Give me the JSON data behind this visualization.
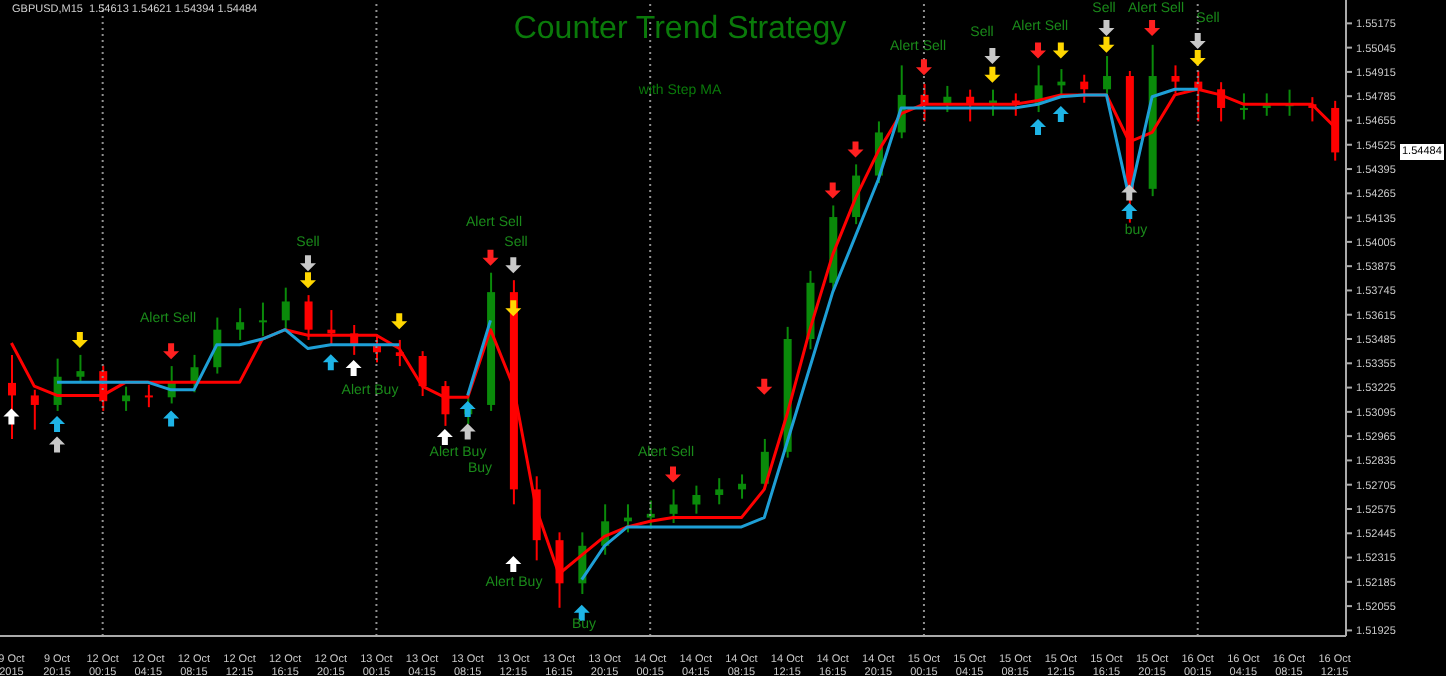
{
  "chart_data": {
    "type": "candlestick",
    "title": "Counter Trend Strategy",
    "subtitle": "with Step MA",
    "categories": [
      "9 Oct 2015",
      null,
      "9 Oct 20:15",
      null,
      "12 Oct 00:15",
      null,
      "12 Oct 04:15",
      null,
      "12 Oct 08:15",
      null,
      "12 Oct 12:15",
      null,
      "12 Oct 16:15",
      null,
      "12 Oct 20:15",
      null,
      "13 Oct 00:15",
      null,
      "13 Oct 04:15",
      null,
      "13 Oct 08:15",
      null,
      "13 Oct 12:15",
      null,
      "13 Oct 16:15",
      null,
      "13 Oct 20:15",
      null,
      "14 Oct 00:15",
      null,
      "14 Oct 04:15",
      null,
      "14 Oct 08:15",
      null,
      "14 Oct 12:15",
      null,
      "14 Oct 16:15",
      null,
      "14 Oct 20:15",
      null,
      "15 Oct 00:15",
      null,
      "15 Oct 04:15",
      null,
      "15 Oct 08:15",
      null,
      "15 Oct 12:15",
      null,
      "15 Oct 16:15",
      null,
      "15 Oct 20:15",
      null,
      "16 Oct 00:15",
      null,
      "16 Oct 04:15",
      null,
      "16 Oct 08:15",
      null,
      "16 Oct 12:15"
    ],
    "ohlc": [
      [
        1.5325,
        1.534,
        1.5295,
        1.53183
      ],
      [
        1.53183,
        1.53213,
        1.53,
        1.53132
      ],
      [
        1.53132,
        1.5338,
        1.531,
        1.53283
      ],
      [
        1.53283,
        1.534,
        1.5325,
        1.53313
      ],
      [
        1.53313,
        1.53343,
        1.531,
        1.53152
      ],
      [
        1.53152,
        1.5323,
        1.531,
        1.53183
      ],
      [
        1.53183,
        1.5324,
        1.5312,
        1.53173
      ],
      [
        1.53173,
        1.5334,
        1.5314,
        1.53253
      ],
      [
        1.53253,
        1.534,
        1.532,
        1.53334
      ],
      [
        1.53334,
        1.536,
        1.533,
        1.53535
      ],
      [
        1.53535,
        1.5365,
        1.5348,
        1.53575
      ],
      [
        1.53575,
        1.5368,
        1.535,
        1.53585
      ],
      [
        1.53585,
        1.5376,
        1.5354,
        1.53686
      ],
      [
        1.53686,
        1.5372,
        1.5348,
        1.53535
      ],
      [
        1.53535,
        1.5364,
        1.5345,
        1.53515
      ],
      [
        1.53515,
        1.5356,
        1.534,
        1.53454
      ],
      [
        1.53454,
        1.535,
        1.5336,
        1.53414
      ],
      [
        1.53414,
        1.5348,
        1.5334,
        1.53394
      ],
      [
        1.53394,
        1.5342,
        1.5318,
        1.53233
      ],
      [
        1.53233,
        1.5326,
        1.5302,
        1.53082
      ],
      [
        1.53082,
        1.532,
        1.5303,
        1.53132
      ],
      [
        1.53132,
        1.5384,
        1.531,
        1.53736
      ],
      [
        1.53736,
        1.538,
        1.526,
        1.5268
      ],
      [
        1.5268,
        1.5275,
        1.523,
        1.52408
      ],
      [
        1.52408,
        1.5245,
        1.52046,
        1.52177
      ],
      [
        1.52177,
        1.5245,
        1.5212,
        1.52378
      ],
      [
        1.52378,
        1.526,
        1.5233,
        1.52509
      ],
      [
        1.52509,
        1.526,
        1.5245,
        1.52529
      ],
      [
        1.52529,
        1.5262,
        1.5247,
        1.52549
      ],
      [
        1.52549,
        1.5268,
        1.525,
        1.52599
      ],
      [
        1.52599,
        1.527,
        1.5255,
        1.5265
      ],
      [
        1.5265,
        1.5274,
        1.526,
        1.5268
      ],
      [
        1.5268,
        1.5276,
        1.5263,
        1.5271
      ],
      [
        1.5271,
        1.5295,
        1.5268,
        1.52881
      ],
      [
        1.52881,
        1.5355,
        1.5285,
        1.53485
      ],
      [
        1.53485,
        1.5385,
        1.5343,
        1.53786
      ],
      [
        1.53786,
        1.542,
        1.5375,
        1.54138
      ],
      [
        1.54138,
        1.5442,
        1.541,
        1.5436
      ],
      [
        1.5436,
        1.5465,
        1.5432,
        1.54591
      ],
      [
        1.54591,
        1.5495,
        1.5456,
        1.54792
      ],
      [
        1.54792,
        1.5485,
        1.5465,
        1.54742
      ],
      [
        1.54742,
        1.5484,
        1.547,
        1.54782
      ],
      [
        1.54782,
        1.5482,
        1.5465,
        1.54742
      ],
      [
        1.54742,
        1.5482,
        1.5468,
        1.54762
      ],
      [
        1.54762,
        1.548,
        1.5468,
        1.54742
      ],
      [
        1.54742,
        1.5495,
        1.547,
        1.54843
      ],
      [
        1.54843,
        1.5493,
        1.5478,
        1.54863
      ],
      [
        1.54863,
        1.549,
        1.5475,
        1.54822
      ],
      [
        1.54822,
        1.55,
        1.5478,
        1.54893
      ],
      [
        1.54893,
        1.5492,
        1.54108,
        1.54289
      ],
      [
        1.54289,
        1.5506,
        1.5425,
        1.54893
      ],
      [
        1.54893,
        1.5495,
        1.548,
        1.54863
      ],
      [
        1.54863,
        1.5492,
        1.5465,
        1.54822
      ],
      [
        1.54822,
        1.5486,
        1.5465,
        1.54722
      ],
      [
        1.54722,
        1.548,
        1.5466,
        1.54722
      ],
      [
        1.54722,
        1.548,
        1.5468,
        1.54742
      ],
      [
        1.54742,
        1.5482,
        1.5468,
        1.54742
      ],
      [
        1.54742,
        1.5478,
        1.5465,
        1.54722
      ],
      [
        1.54722,
        1.5476,
        1.5444,
        1.54484
      ]
    ],
    "colors": [
      "#ff0000",
      "#ff0000",
      "#0a8a0a",
      "#0a8a0a",
      "#ff0000",
      "#0a8a0a",
      "#ff0000",
      "#0a8a0a",
      "#0a8a0a",
      "#0a8a0a",
      "#0a8a0a",
      "#0a8a0a",
      "#0a8a0a",
      "#ff0000",
      "#ff0000",
      "#ff0000",
      "#ff0000",
      "#ff0000",
      "#ff0000",
      "#ff0000",
      "#0a8a0a",
      "#0a8a0a",
      "#ff0000",
      "#ff0000",
      "#ff0000",
      "#0a8a0a",
      "#0a8a0a",
      "#0a8a0a",
      "#0a8a0a",
      "#0a8a0a",
      "#0a8a0a",
      "#0a8a0a",
      "#0a8a0a",
      "#0a8a0a",
      "#0a8a0a",
      "#0a8a0a",
      "#0a8a0a",
      "#0a8a0a",
      "#0a8a0a",
      "#0a8a0a",
      "#ff0000",
      "#0a8a0a",
      "#ff0000",
      "#0a8a0a",
      "#ff0000",
      "#0a8a0a",
      "#0a8a0a",
      "#ff0000",
      "#0a8a0a",
      "#ff0000",
      "#0a8a0a",
      "#ff0000",
      "#ff0000",
      "#ff0000",
      "#0a8a0a",
      "#0a8a0a",
      "#0a8a0a",
      "#ff0000",
      "#ff0000"
    ],
    "series": [
      {
        "type": "line",
        "color": "#ff0000",
        "line_style": "solid",
        "marker": "none",
        "values": [
          1.53464,
          1.53233,
          1.53183,
          1.53183,
          1.53183,
          1.53253,
          1.53253,
          1.53253,
          1.53253,
          1.53253,
          1.53253,
          1.53485,
          1.53535,
          1.53505,
          1.53505,
          1.53505,
          1.53505,
          1.53434,
          1.53233,
          1.53173,
          1.53173,
          1.53535,
          1.53233,
          1.52579,
          1.52227,
          1.52328,
          1.52428,
          1.52479,
          1.52509,
          1.52529,
          1.52529,
          1.52529,
          1.52529,
          1.5268,
          1.53082,
          1.53535,
          1.53937,
          1.54239,
          1.54491,
          1.54692,
          1.54742,
          1.54742,
          1.54742,
          1.54742,
          1.54742,
          1.54762,
          1.54792,
          1.54792,
          1.54792,
          1.54541,
          1.54591,
          1.54792,
          1.54822,
          1.54792,
          1.54742,
          1.54742,
          1.54742,
          1.54742,
          1.54621
        ]
      },
      {
        "type": "line",
        "color": "#1e9fd6",
        "line_style": "solid",
        "marker": "none",
        "values": [
          null,
          null,
          1.53253,
          1.53253,
          1.53253,
          1.53253,
          1.53253,
          1.53213,
          1.53213,
          1.53454,
          1.53454,
          1.53485,
          1.53535,
          1.53434,
          1.53454,
          1.53454,
          1.53454,
          1.53454,
          null,
          null,
          1.53183,
          1.53585,
          null,
          null,
          null,
          1.52197,
          1.52378,
          1.52479,
          1.52479,
          1.52479,
          1.52479,
          1.52479,
          1.52479,
          1.52529,
          1.52931,
          1.53334,
          1.53736,
          1.54037,
          1.54339,
          1.54722,
          1.54722,
          1.54722,
          1.54722,
          1.54722,
          1.54722,
          1.54742,
          1.54782,
          1.54792,
          1.54792,
          1.54239,
          1.54782,
          1.54822,
          1.54822,
          null,
          null,
          null,
          null,
          null,
          null
        ]
      },
      {
        "type": "scatter",
        "color": "#ff2020",
        "marker": "triangle",
        "values": [
          null,
          null,
          null,
          null,
          null,
          null,
          null,
          1.5342,
          null,
          null,
          null,
          null,
          null,
          null,
          null,
          null,
          null,
          null,
          null,
          null,
          null,
          1.5392,
          null,
          null,
          null,
          null,
          null,
          null,
          null,
          1.5276,
          null,
          null,
          null,
          1.5323,
          null,
          null,
          1.5428,
          1.545,
          null,
          null,
          1.5494,
          null,
          null,
          null,
          null,
          1.5503,
          null,
          null,
          null,
          null,
          1.5515,
          null,
          null,
          null,
          null,
          null,
          null,
          null,
          null
        ]
      },
      {
        "type": "scatter",
        "color": "#ffd700",
        "marker": "triangle",
        "values": [
          null,
          null,
          null,
          1.5348,
          null,
          null,
          null,
          null,
          null,
          null,
          null,
          null,
          null,
          1.538,
          null,
          null,
          null,
          1.5358,
          null,
          null,
          null,
          null,
          1.5365,
          null,
          null,
          null,
          null,
          null,
          null,
          null,
          null,
          null,
          null,
          null,
          null,
          null,
          null,
          null,
          null,
          null,
          null,
          null,
          null,
          1.549,
          null,
          null,
          1.5503,
          null,
          1.5506,
          null,
          null,
          null,
          1.5499,
          null,
          null,
          null,
          null,
          null,
          null
        ]
      },
      {
        "type": "scatter",
        "color": "#c8c8c8",
        "marker": "triangle",
        "values": [
          null,
          null,
          1.5292,
          null,
          null,
          null,
          null,
          null,
          null,
          null,
          null,
          null,
          null,
          1.5389,
          null,
          null,
          null,
          null,
          null,
          null,
          1.5299,
          null,
          1.5388,
          null,
          null,
          null,
          null,
          null,
          null,
          null,
          null,
          null,
          null,
          null,
          null,
          null,
          null,
          null,
          null,
          null,
          null,
          null,
          null,
          1.55,
          null,
          null,
          null,
          null,
          1.5515,
          1.5427,
          null,
          null,
          1.5508,
          null,
          null,
          null,
          null,
          null,
          null
        ]
      },
      {
        "type": "scatter",
        "color": "#ffffff",
        "marker": "triangle",
        "values": [
          1.5307,
          null,
          null,
          null,
          null,
          null,
          null,
          null,
          null,
          null,
          null,
          null,
          null,
          null,
          null,
          1.5333,
          null,
          null,
          null,
          1.5296,
          null,
          null,
          1.5228,
          null,
          null,
          null,
          null,
          null,
          null,
          null,
          null,
          null,
          null,
          null,
          null,
          null,
          null,
          null,
          null,
          null,
          null,
          null,
          null,
          null,
          null,
          null,
          null,
          null,
          null,
          null,
          null,
          null,
          null,
          null,
          null,
          null,
          null,
          null,
          null
        ]
      },
      {
        "type": "scatter",
        "color": "#1eb4e6",
        "marker": "triangle",
        "values": [
          null,
          null,
          1.5303,
          null,
          null,
          null,
          null,
          1.5306,
          null,
          null,
          null,
          null,
          null,
          null,
          1.5336,
          null,
          null,
          null,
          null,
          null,
          1.5311,
          null,
          null,
          null,
          null,
          1.5202,
          null,
          null,
          null,
          null,
          null,
          null,
          null,
          null,
          null,
          null,
          null,
          null,
          null,
          null,
          null,
          null,
          null,
          null,
          null,
          1.5462,
          1.5469,
          null,
          null,
          1.5417,
          null,
          null,
          null,
          null,
          null,
          null,
          null,
          null,
          null
        ]
      }
    ],
    "ylim": [
      1.51895,
      1.553
    ],
    "yticks": [
      1.51925,
      1.52055,
      1.52185,
      1.52315,
      1.52445,
      1.52575,
      1.52705,
      1.52835,
      1.52965,
      1.53095,
      1.53225,
      1.53355,
      1.53485,
      1.53615,
      1.53745,
      1.53875,
      1.54005,
      1.54135,
      1.54265,
      1.54395,
      1.54525,
      1.54655,
      1.54785,
      1.54915,
      1.55045,
      1.55175
    ],
    "ref_lines": [
      {
        "axis": "x",
        "value": "12 Oct 00:15",
        "color": "#909090",
        "line_style": "dotted"
      },
      {
        "axis": "x",
        "value": "13 Oct 00:15",
        "color": "#909090",
        "line_style": "dotted"
      },
      {
        "axis": "x",
        "value": "14 Oct 00:15",
        "color": "#909090",
        "line_style": "dotted"
      },
      {
        "axis": "x",
        "value": "15 Oct 00:15",
        "color": "#909090",
        "line_style": "dotted"
      },
      {
        "axis": "x",
        "value": "16 Oct 00:15",
        "color": "#909090",
        "line_style": "dotted"
      }
    ],
    "annotations": [
      "GBPUSD,M15  1.54613 1.54621 1.54394 1.54484",
      "1.54484",
      "Alert Sell",
      "Sell",
      "Alert Buy",
      "Alert Sell",
      "Alert Buy",
      "Buy",
      "Sell",
      "Alert Buy",
      "Buy",
      "Alert Sell",
      "Alert Sell",
      "Sell",
      "Alert Sell",
      "Sell",
      "buy",
      "Alert Sell",
      "Sell"
    ]
  }
}
